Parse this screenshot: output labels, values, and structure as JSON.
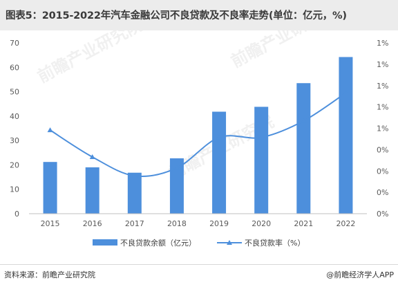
{
  "title": "图表5：2015-2022年汽车金融公司不良贷款及不良率走势(单位：亿元，%)",
  "source": "资料来源：前瞻产业研究院",
  "brand": "@前瞻经济学人APP",
  "watermark": "前瞻产业研究院",
  "colors": {
    "bar": "#4d8fdc",
    "line": "#4d8fdc",
    "title_bg": "#ececec"
  },
  "chart_data": {
    "type": "bar",
    "categories": [
      "2015",
      "2016",
      "2017",
      "2018",
      "2019",
      "2020",
      "2021",
      "2022"
    ],
    "series": [
      {
        "name": "不良贷款余额（亿元）",
        "type": "bar",
        "axis": "left",
        "values": [
          21.2,
          19.0,
          16.8,
          22.7,
          41.8,
          43.8,
          53.5,
          64.2
        ]
      },
      {
        "name": "不良贷款率（%）",
        "type": "line",
        "axis": "right",
        "values": [
          1.37,
          0.93,
          0.62,
          0.75,
          1.25,
          1.25,
          1.52,
          1.98
        ]
      }
    ],
    "ylim_left": [
      0,
      70
    ],
    "yticks_left": [
      "0",
      "10",
      "20",
      "30",
      "40",
      "50",
      "60",
      "70"
    ],
    "ylim_right": [
      0,
      2.8
    ],
    "yticks_right": [
      "0%",
      "0%",
      "0%",
      "0%",
      "1%",
      "1%",
      "1%",
      "1%",
      "1%"
    ],
    "grid": false,
    "legend_position": "bottom"
  }
}
